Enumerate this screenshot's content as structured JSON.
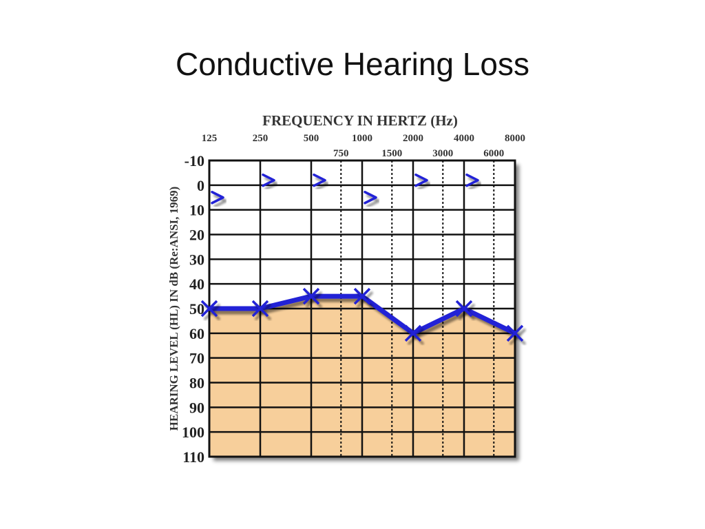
{
  "slide": {
    "title": "Conductive Hearing Loss"
  },
  "chart_data": {
    "type": "line",
    "title": "FREQUENCY IN HERTZ (Hz)",
    "xlabel": "FREQUENCY IN HERTZ (Hz)",
    "ylabel": "HEARING LEVEL (HL) IN dB (Re:ANSI, 1969)",
    "x_scale": "log2",
    "x_major_ticks": [
      125,
      250,
      500,
      1000,
      2000,
      4000,
      8000
    ],
    "x_minor_ticks": [
      750,
      1500,
      3000,
      6000
    ],
    "x_major_tick_labels": [
      "125",
      "250",
      "500",
      "1000",
      "2000",
      "4000",
      "8000"
    ],
    "x_minor_tick_labels": [
      "750",
      "1500",
      "3000",
      "6000"
    ],
    "y_ticks": [
      -10,
      0,
      10,
      20,
      30,
      40,
      50,
      60,
      70,
      80,
      90,
      100,
      110
    ],
    "y_tick_labels": [
      "-10",
      "0",
      "10",
      "20",
      "30",
      "40",
      "50",
      "60",
      "70",
      "80",
      "90",
      "100",
      "110"
    ],
    "ylim": [
      -10,
      110
    ],
    "y_inverted": true,
    "grid": true,
    "shaded_region": {
      "description": "area below air conduction thresholds",
      "color": "#f7cf9b"
    },
    "series": [
      {
        "marker": "x",
        "color": "#2424d6",
        "x": [
          125,
          250,
          500,
          1000,
          2000,
          4000,
          8000
        ],
        "y": [
          50,
          50,
          45,
          45,
          60,
          50,
          60
        ]
      },
      {
        "marker": ">",
        "color": "#2424d6",
        "x": [
          125,
          250,
          500,
          1000,
          2000,
          4000
        ],
        "y": [
          5,
          -2,
          -2,
          5,
          -2,
          -2
        ]
      }
    ]
  }
}
